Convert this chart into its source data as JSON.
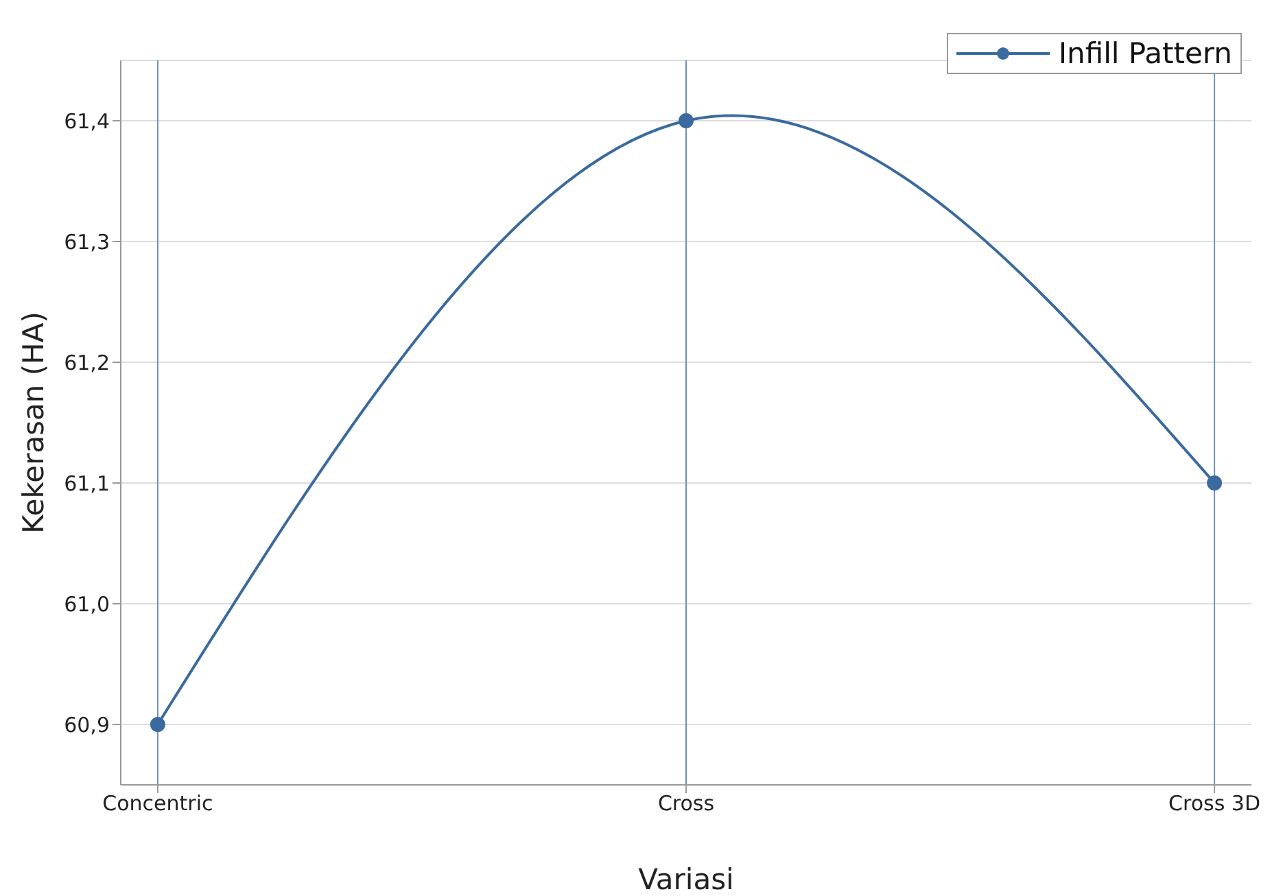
{
  "chart_data": {
    "type": "line",
    "xlabel": "Variasi",
    "ylabel": "Kekerasan (HA)",
    "categories": [
      "Concentric",
      "Cross",
      "Cross 3D"
    ],
    "series": [
      {
        "name": "Infill Pattern",
        "color": "#3a6a9e",
        "values": [
          60.9,
          61.4,
          61.1
        ]
      }
    ],
    "ylim": [
      60.85,
      61.45
    ],
    "yticks": [
      {
        "value": 60.9,
        "label": "60,9"
      },
      {
        "value": 61.0,
        "label": "61,0"
      },
      {
        "value": 61.1,
        "label": "61,1"
      },
      {
        "value": 61.2,
        "label": "61,2"
      },
      {
        "value": 61.3,
        "label": "61,3"
      },
      {
        "value": 61.4,
        "label": "61,4"
      }
    ],
    "grid": true,
    "legend": "top right",
    "marker": "circle",
    "line_style": "solid"
  }
}
